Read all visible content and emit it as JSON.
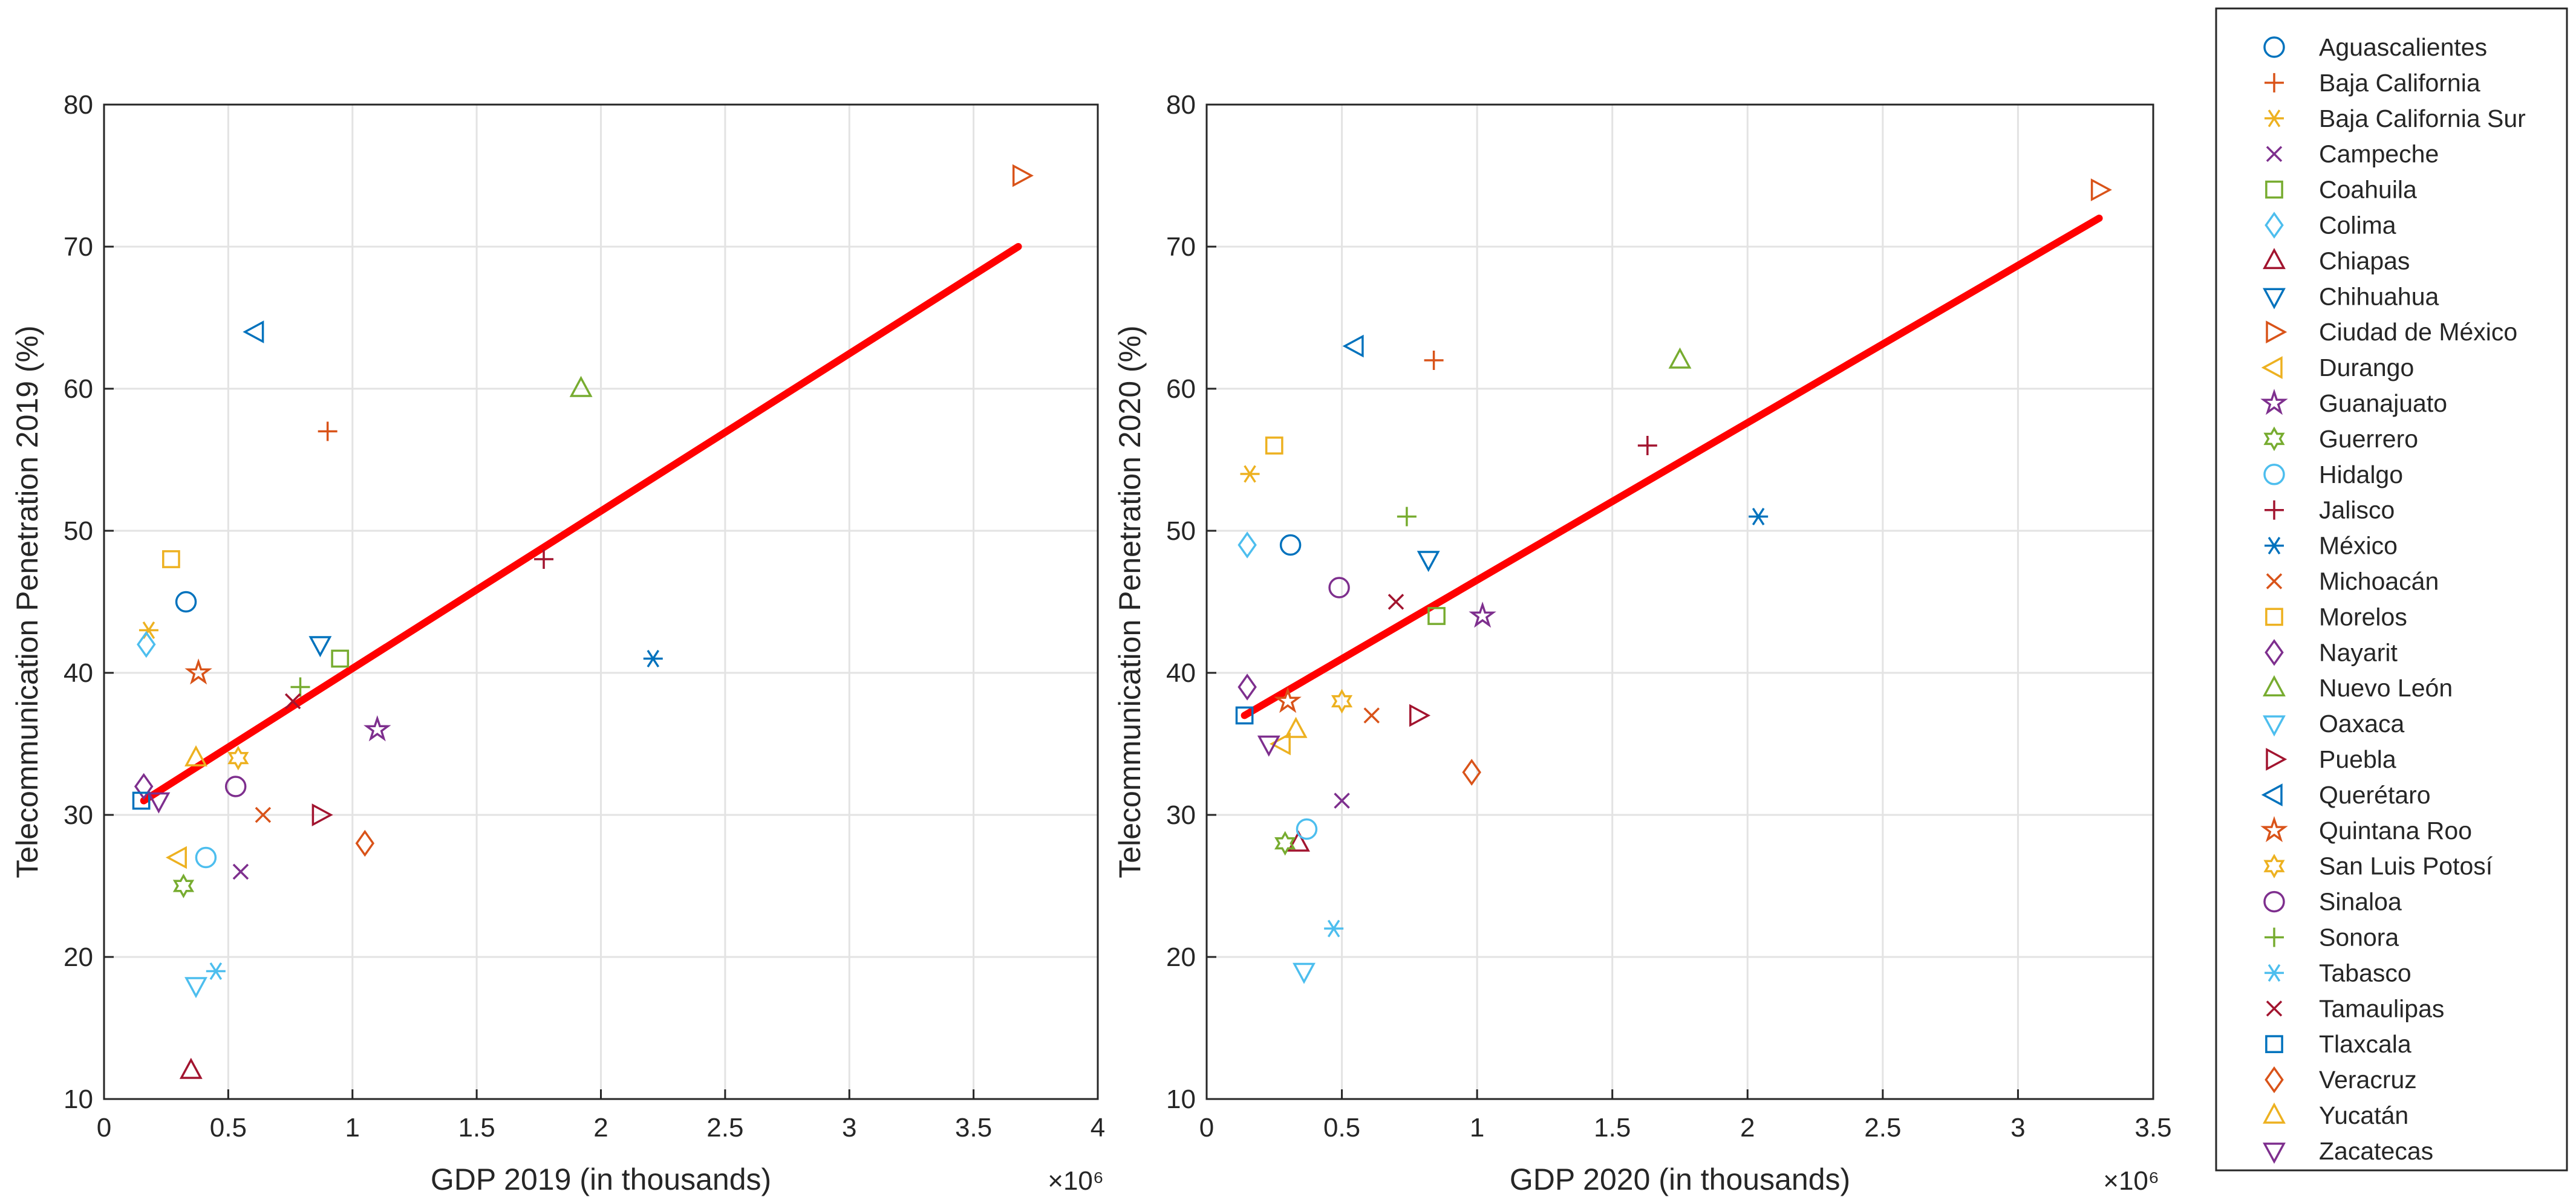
{
  "colors": {
    "fit_line": "#ff0000",
    "axis": "#262626",
    "grid": "#e3e3e3"
  },
  "legend": [
    {
      "name": "Aguascalientes",
      "marker": "circle",
      "color": "#0072bd"
    },
    {
      "name": "Baja California",
      "marker": "plus",
      "color": "#d95319"
    },
    {
      "name": "Baja California Sur",
      "marker": "asterisk",
      "color": "#edb120"
    },
    {
      "name": "Campeche",
      "marker": "x",
      "color": "#7e2f8e"
    },
    {
      "name": "Coahuila",
      "marker": "square",
      "color": "#77ac30"
    },
    {
      "name": "Colima",
      "marker": "diamond",
      "color": "#4dbeee"
    },
    {
      "name": "Chiapas",
      "marker": "triangle-up",
      "color": "#a2142f"
    },
    {
      "name": "Chihuahua",
      "marker": "triangle-down",
      "color": "#0072bd"
    },
    {
      "name": "Ciudad de México",
      "marker": "triangle-right",
      "color": "#d95319"
    },
    {
      "name": "Durango",
      "marker": "triangle-left",
      "color": "#edb120"
    },
    {
      "name": "Guanajuato",
      "marker": "pentagram",
      "color": "#7e2f8e"
    },
    {
      "name": "Guerrero",
      "marker": "hexagram",
      "color": "#77ac30"
    },
    {
      "name": "Hidalgo",
      "marker": "circle",
      "color": "#4dbeee"
    },
    {
      "name": "Jalisco",
      "marker": "plus",
      "color": "#a2142f"
    },
    {
      "name": "México",
      "marker": "asterisk",
      "color": "#0072bd"
    },
    {
      "name": "Michoacán",
      "marker": "x",
      "color": "#d95319"
    },
    {
      "name": "Morelos",
      "marker": "square",
      "color": "#edb120"
    },
    {
      "name": "Nayarit",
      "marker": "diamond",
      "color": "#7e2f8e"
    },
    {
      "name": "Nuevo León",
      "marker": "triangle-up",
      "color": "#77ac30"
    },
    {
      "name": "Oaxaca",
      "marker": "triangle-down",
      "color": "#4dbeee"
    },
    {
      "name": "Puebla",
      "marker": "triangle-right",
      "color": "#a2142f"
    },
    {
      "name": "Querétaro",
      "marker": "triangle-left",
      "color": "#0072bd"
    },
    {
      "name": "Quintana Roo",
      "marker": "pentagram",
      "color": "#d95319"
    },
    {
      "name": "San Luis Potosí",
      "marker": "hexagram",
      "color": "#edb120"
    },
    {
      "name": "Sinaloa",
      "marker": "circle",
      "color": "#7e2f8e"
    },
    {
      "name": "Sonora",
      "marker": "plus",
      "color": "#77ac30"
    },
    {
      "name": "Tabasco",
      "marker": "asterisk",
      "color": "#4dbeee"
    },
    {
      "name": "Tamaulipas",
      "marker": "x",
      "color": "#a2142f"
    },
    {
      "name": "Tlaxcala",
      "marker": "square",
      "color": "#0072bd"
    },
    {
      "name": "Veracruz",
      "marker": "diamond",
      "color": "#d95319"
    },
    {
      "name": "Yucatán",
      "marker": "triangle-up",
      "color": "#edb120"
    },
    {
      "name": "Zacatecas",
      "marker": "triangle-down",
      "color": "#7e2f8e"
    }
  ],
  "chart_data": [
    {
      "type": "scatter",
      "title": "",
      "xlabel": "GDP 2019 (in thousands)",
      "ylabel": "Telecommunication Penetration 2019 (%)",
      "x_exponent_label": "×10⁶",
      "xlim": [
        0,
        4
      ],
      "ylim": [
        10,
        80
      ],
      "xticks": [
        0,
        0.5,
        1,
        1.5,
        2,
        2.5,
        3,
        3.5,
        4
      ],
      "xtick_labels": [
        "0",
        "0.5",
        "1",
        "1.5",
        "2",
        "2.5",
        "3",
        "3.5",
        "4"
      ],
      "yticks": [
        10,
        20,
        30,
        40,
        50,
        60,
        70,
        80
      ],
      "ytick_labels": [
        "10",
        "20",
        "30",
        "40",
        "50",
        "60",
        "70",
        "80"
      ],
      "grid": true,
      "fit_line": {
        "x": [
          0.16,
          3.68
        ],
        "y": [
          31,
          70
        ]
      },
      "points": [
        {
          "state": "Aguascalientes",
          "x": 0.33,
          "y": 45
        },
        {
          "state": "Baja California",
          "x": 0.9,
          "y": 57
        },
        {
          "state": "Baja California Sur",
          "x": 0.18,
          "y": 43
        },
        {
          "state": "Campeche",
          "x": 0.55,
          "y": 26
        },
        {
          "state": "Coahuila",
          "x": 0.95,
          "y": 41
        },
        {
          "state": "Colima",
          "x": 0.17,
          "y": 42
        },
        {
          "state": "Chiapas",
          "x": 0.35,
          "y": 12
        },
        {
          "state": "Chihuahua",
          "x": 0.87,
          "y": 42
        },
        {
          "state": "Ciudad de México",
          "x": 3.69,
          "y": 75
        },
        {
          "state": "Durango",
          "x": 0.3,
          "y": 27
        },
        {
          "state": "Guanajuato",
          "x": 1.1,
          "y": 36
        },
        {
          "state": "Guerrero",
          "x": 0.32,
          "y": 25
        },
        {
          "state": "Hidalgo",
          "x": 0.41,
          "y": 27
        },
        {
          "state": "Jalisco",
          "x": 1.77,
          "y": 48
        },
        {
          "state": "México",
          "x": 2.21,
          "y": 41
        },
        {
          "state": "Michoacán",
          "x": 0.64,
          "y": 30
        },
        {
          "state": "Morelos",
          "x": 0.27,
          "y": 48
        },
        {
          "state": "Nayarit",
          "x": 0.16,
          "y": 32
        },
        {
          "state": "Nuevo León",
          "x": 1.92,
          "y": 60
        },
        {
          "state": "Oaxaca",
          "x": 0.37,
          "y": 18
        },
        {
          "state": "Puebla",
          "x": 0.87,
          "y": 30
        },
        {
          "state": "Querétaro",
          "x": 0.61,
          "y": 64
        },
        {
          "state": "Quintana Roo",
          "x": 0.38,
          "y": 40
        },
        {
          "state": "San Luis Potosí",
          "x": 0.54,
          "y": 34
        },
        {
          "state": "Sinaloa",
          "x": 0.53,
          "y": 32
        },
        {
          "state": "Sonora",
          "x": 0.79,
          "y": 39
        },
        {
          "state": "Tabasco",
          "x": 0.45,
          "y": 19
        },
        {
          "state": "Tamaulipas",
          "x": 0.76,
          "y": 38
        },
        {
          "state": "Tlaxcala",
          "x": 0.15,
          "y": 31
        },
        {
          "state": "Veracruz",
          "x": 1.05,
          "y": 28
        },
        {
          "state": "Yucatán",
          "x": 0.37,
          "y": 34
        },
        {
          "state": "Zacatecas",
          "x": 0.22,
          "y": 31
        }
      ]
    },
    {
      "type": "scatter",
      "title": "",
      "xlabel": "GDP 2020 (in thousands)",
      "ylabel": "Telecommunication Penetration 2020 (%)",
      "x_exponent_label": "×10⁶",
      "xlim": [
        0,
        3.5
      ],
      "ylim": [
        10,
        80
      ],
      "xticks": [
        0,
        0.5,
        1,
        1.5,
        2,
        2.5,
        3,
        3.5
      ],
      "xtick_labels": [
        "0",
        "0.5",
        "1",
        "1.5",
        "2",
        "2.5",
        "3",
        "3.5"
      ],
      "yticks": [
        10,
        20,
        30,
        40,
        50,
        60,
        70,
        80
      ],
      "ytick_labels": [
        "10",
        "20",
        "30",
        "40",
        "50",
        "60",
        "70",
        "80"
      ],
      "grid": true,
      "fit_line": {
        "x": [
          0.14,
          3.3
        ],
        "y": [
          37,
          72
        ]
      },
      "points": [
        {
          "state": "Aguascalientes",
          "x": 0.31,
          "y": 49
        },
        {
          "state": "Baja California",
          "x": 0.84,
          "y": 62
        },
        {
          "state": "Baja California Sur",
          "x": 0.16,
          "y": 54
        },
        {
          "state": "Campeche",
          "x": 0.5,
          "y": 31
        },
        {
          "state": "Coahuila",
          "x": 0.85,
          "y": 44
        },
        {
          "state": "Colima",
          "x": 0.15,
          "y": 49
        },
        {
          "state": "Chiapas",
          "x": 0.34,
          "y": 28
        },
        {
          "state": "Chihuahua",
          "x": 0.82,
          "y": 48
        },
        {
          "state": "Ciudad de México",
          "x": 3.3,
          "y": 74
        },
        {
          "state": "Durango",
          "x": 0.28,
          "y": 35
        },
        {
          "state": "Guanajuato",
          "x": 1.02,
          "y": 44
        },
        {
          "state": "Guerrero",
          "x": 0.29,
          "y": 28
        },
        {
          "state": "Hidalgo",
          "x": 0.37,
          "y": 29
        },
        {
          "state": "Jalisco",
          "x": 1.63,
          "y": 56
        },
        {
          "state": "México",
          "x": 2.04,
          "y": 51
        },
        {
          "state": "Michoacán",
          "x": 0.61,
          "y": 37
        },
        {
          "state": "Morelos",
          "x": 0.25,
          "y": 56
        },
        {
          "state": "Nayarit",
          "x": 0.15,
          "y": 39
        },
        {
          "state": "Nuevo León",
          "x": 1.75,
          "y": 62
        },
        {
          "state": "Oaxaca",
          "x": 0.36,
          "y": 19
        },
        {
          "state": "Puebla",
          "x": 0.78,
          "y": 37
        },
        {
          "state": "Querétaro",
          "x": 0.55,
          "y": 63
        },
        {
          "state": "Quintana Roo",
          "x": 0.3,
          "y": 38
        },
        {
          "state": "San Luis Potosí",
          "x": 0.5,
          "y": 38
        },
        {
          "state": "Sinaloa",
          "x": 0.49,
          "y": 46
        },
        {
          "state": "Sonora",
          "x": 0.74,
          "y": 51
        },
        {
          "state": "Tabasco",
          "x": 0.47,
          "y": 22
        },
        {
          "state": "Tamaulipas",
          "x": 0.7,
          "y": 45
        },
        {
          "state": "Tlaxcala",
          "x": 0.14,
          "y": 37
        },
        {
          "state": "Veracruz",
          "x": 0.98,
          "y": 33
        },
        {
          "state": "Yucatán",
          "x": 0.33,
          "y": 36
        },
        {
          "state": "Zacatecas",
          "x": 0.23,
          "y": 35
        }
      ]
    }
  ]
}
